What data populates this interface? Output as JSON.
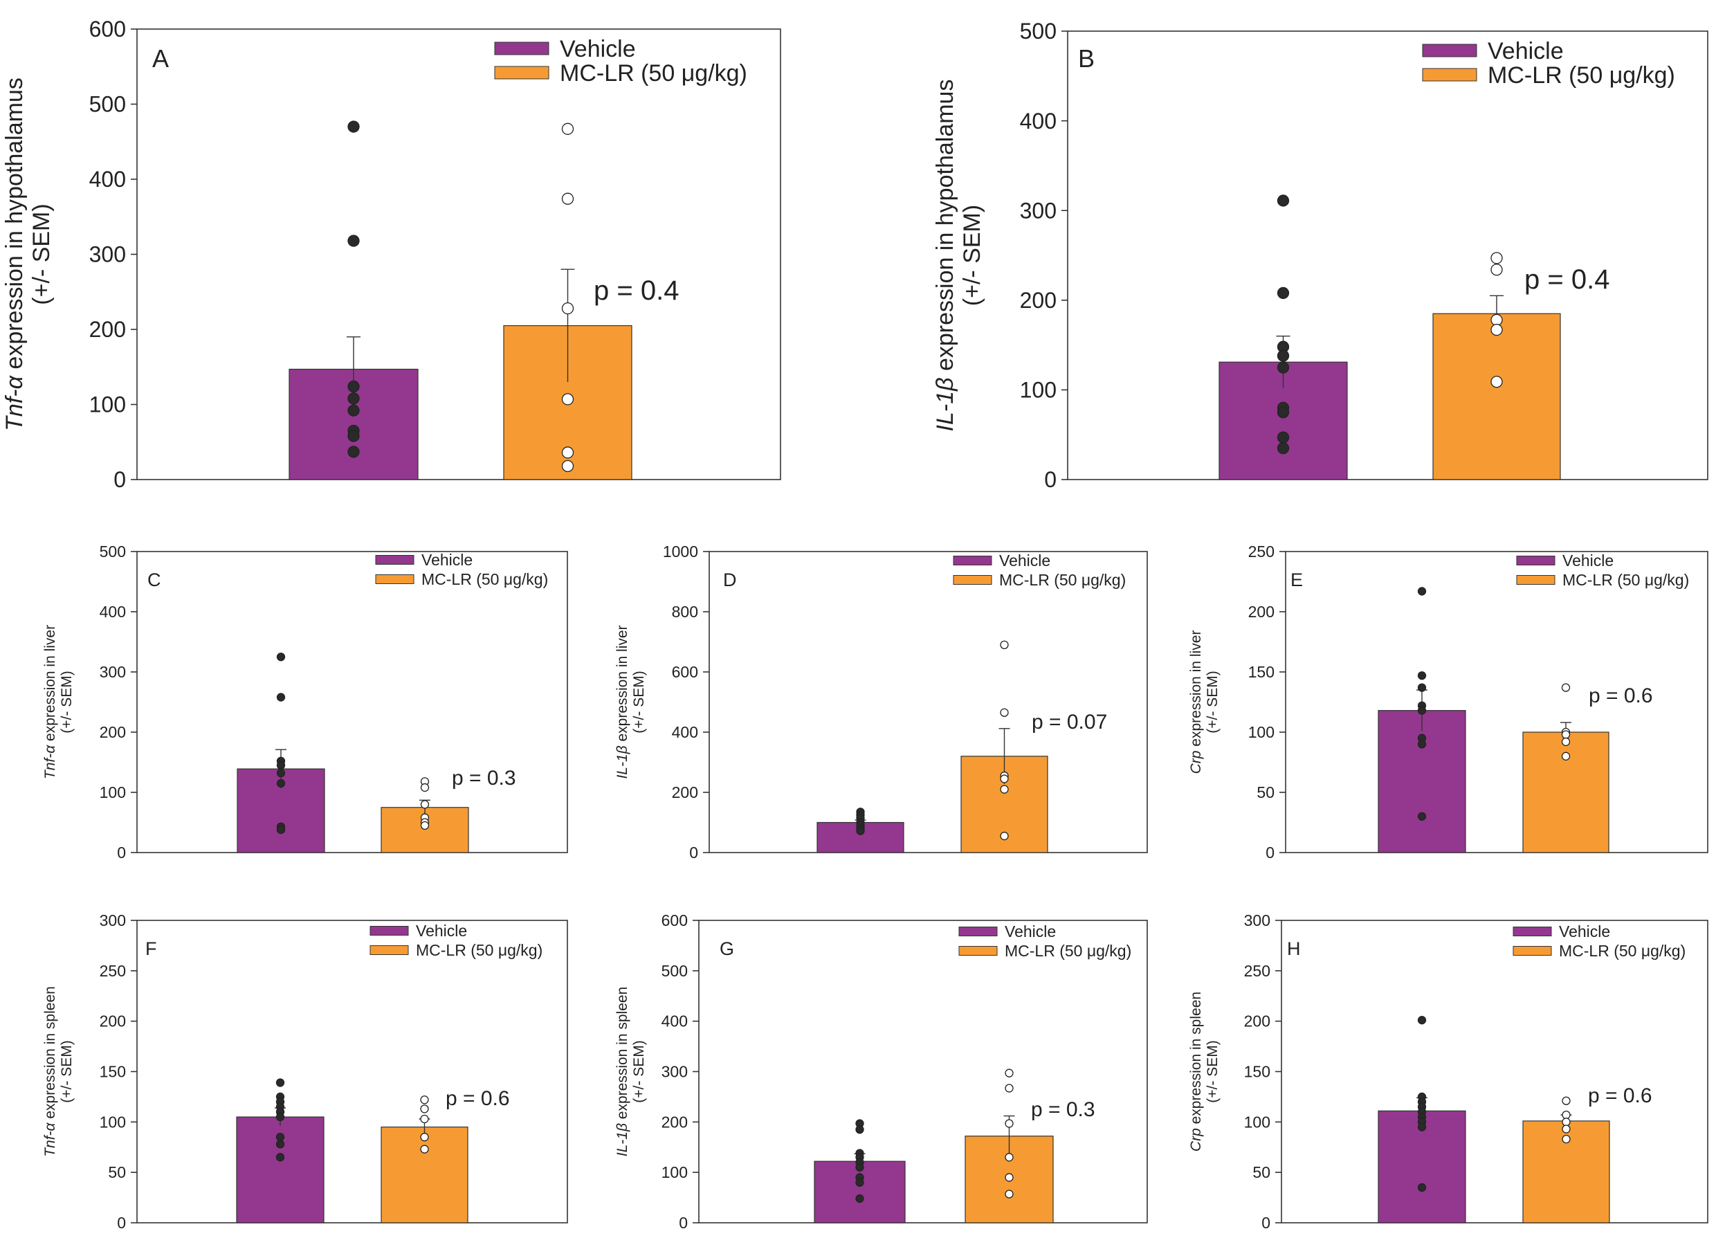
{
  "colors": {
    "vehicle": "#93388e",
    "mclr": "#f69b33",
    "dot_vehicle": "#2a2a2a",
    "dot_mclr": "#ffffff",
    "axis": "#333333"
  },
  "chart_data": [
    {
      "id": "A",
      "type": "bar",
      "panel_label": "A",
      "ylabel": [
        "Tnf-α expression in hypothalamus",
        "(+/- SEM)"
      ],
      "ylabel_italic": "Tnf-α",
      "yticks": [
        0,
        100,
        200,
        300,
        400,
        500,
        600
      ],
      "ylim": [
        0,
        600
      ],
      "series": [
        {
          "name": "Vehicle",
          "value": 147,
          "sem": 43,
          "points": [
            470,
            318,
            124,
            108,
            92,
            65,
            58,
            37
          ]
        },
        {
          "name": "MC-LR (50 μg/kg)",
          "value": 205,
          "sem": 75,
          "points": [
            467,
            374,
            228,
            107,
            36,
            18
          ]
        }
      ],
      "annotation": "p = 0.4",
      "legend": [
        "Vehicle",
        "MC-LR (50 μg/kg)"
      ]
    },
    {
      "id": "B",
      "type": "bar",
      "panel_label": "B",
      "ylabel": [
        "IL-1β expression in hypothalamus",
        "(+/- SEM)"
      ],
      "ylabel_italic": "IL-1β",
      "yticks": [
        0,
        100,
        200,
        300,
        400,
        500
      ],
      "ylim": [
        0,
        500
      ],
      "series": [
        {
          "name": "Vehicle",
          "value": 131,
          "sem": 29,
          "points": [
            311,
            208,
            148,
            138,
            125,
            80,
            75,
            47,
            35
          ]
        },
        {
          "name": "MC-LR (50 μg/kg)",
          "value": 185,
          "sem": 20,
          "points": [
            247,
            234,
            178,
            167,
            109
          ]
        }
      ],
      "annotation": "p = 0.4",
      "legend": [
        "Vehicle",
        "MC-LR (50 μg/kg)"
      ]
    },
    {
      "id": "C",
      "type": "bar",
      "panel_label": "C",
      "ylabel": [
        "Tnf-α expression in liver",
        "(+/- SEM)"
      ],
      "ylabel_italic": "Tnf-α",
      "yticks": [
        0,
        100,
        200,
        300,
        400,
        500
      ],
      "ylim": [
        0,
        500
      ],
      "series": [
        {
          "name": "Vehicle",
          "value": 139,
          "sem": 32,
          "points": [
            325,
            258,
            152,
            145,
            132,
            115,
            43,
            38
          ]
        },
        {
          "name": "MC-LR (50 μg/kg)",
          "value": 75,
          "sem": 12,
          "points": [
            118,
            108,
            80,
            58,
            50,
            45
          ]
        }
      ],
      "annotation": "p = 0.3",
      "legend": [
        "Vehicle",
        "MC-LR (50 μg/kg)"
      ]
    },
    {
      "id": "D",
      "type": "bar",
      "panel_label": "D",
      "ylabel": [
        "IL-1β expression in liver",
        "(+/- SEM)"
      ],
      "ylabel_italic": "IL-1β",
      "yticks": [
        0,
        200,
        400,
        600,
        800,
        1000
      ],
      "ylim": [
        0,
        1000
      ],
      "series": [
        {
          "name": "Vehicle",
          "value": 100,
          "sem": 8,
          "points": [
            135,
            125,
            115,
            100,
            90,
            80,
            72
          ]
        },
        {
          "name": "MC-LR (50 μg/kg)",
          "value": 320,
          "sem": 92,
          "points": [
            690,
            465,
            255,
            245,
            210,
            55
          ]
        }
      ],
      "annotation": "p = 0.07",
      "legend": [
        "Vehicle",
        "MC-LR (50 μg/kg)"
      ]
    },
    {
      "id": "E",
      "type": "bar",
      "panel_label": "E",
      "ylabel": [
        "Crp expression in liver",
        "(+/- SEM)"
      ],
      "ylabel_italic": "Crp",
      "yticks": [
        0,
        50,
        100,
        150,
        200,
        250
      ],
      "ylim": [
        0,
        250
      ],
      "series": [
        {
          "name": "Vehicle",
          "value": 118,
          "sem": 17,
          "points": [
            217,
            147,
            137,
            122,
            118,
            95,
            90,
            30
          ]
        },
        {
          "name": "MC-LR (50 μg/kg)",
          "value": 100,
          "sem": 8,
          "points": [
            137,
            100,
            98,
            92,
            80
          ]
        }
      ],
      "annotation": "p = 0.6",
      "legend": [
        "Vehicle",
        "MC-LR (50 μg/kg)"
      ]
    },
    {
      "id": "F",
      "type": "bar",
      "panel_label": "F",
      "ylabel": [
        "Tnf-α expression in spleen",
        "(+/- SEM)"
      ],
      "ylabel_italic": "Tnf-α",
      "yticks": [
        0,
        50,
        100,
        150,
        200,
        250,
        300
      ],
      "ylim": [
        0,
        300
      ],
      "series": [
        {
          "name": "Vehicle",
          "value": 105,
          "sem": 9,
          "points": [
            139,
            125,
            120,
            115,
            110,
            105,
            85,
            78,
            65
          ]
        },
        {
          "name": "MC-LR (50 μg/kg)",
          "value": 95,
          "sem": 8,
          "points": [
            122,
            113,
            103,
            85,
            73
          ]
        }
      ],
      "annotation": "p = 0.6",
      "legend": [
        "Vehicle",
        "MC-LR (50 μg/kg)"
      ]
    },
    {
      "id": "G",
      "type": "bar",
      "panel_label": "G",
      "ylabel": [
        "IL-1β expression in spleen",
        "(+/- SEM)"
      ],
      "ylabel_italic": "IL-1β",
      "yticks": [
        0,
        100,
        200,
        300,
        400,
        500,
        600
      ],
      "ylim": [
        0,
        600
      ],
      "series": [
        {
          "name": "Vehicle",
          "value": 122,
          "sem": 15,
          "points": [
            197,
            185,
            138,
            130,
            120,
            110,
            90,
            80,
            48
          ]
        },
        {
          "name": "MC-LR (50 μg/kg)",
          "value": 172,
          "sem": 40,
          "points": [
            297,
            267,
            197,
            130,
            90,
            57
          ]
        }
      ],
      "annotation": "p = 0.3",
      "legend": [
        "Vehicle",
        "MC-LR (50 μg/kg)"
      ]
    },
    {
      "id": "H",
      "type": "bar",
      "panel_label": "H",
      "ylabel": [
        "Crp expression in spleen",
        "(+/- SEM)"
      ],
      "ylabel_italic": "Crp",
      "yticks": [
        0,
        50,
        100,
        150,
        200,
        250,
        300
      ],
      "ylim": [
        0,
        300
      ],
      "series": [
        {
          "name": "Vehicle",
          "value": 111,
          "sem": 13,
          "points": [
            201,
            125,
            120,
            115,
            110,
            105,
            100,
            95,
            35
          ]
        },
        {
          "name": "MC-LR (50 μg/kg)",
          "value": 101,
          "sem": 6,
          "points": [
            121,
            107,
            100,
            93,
            83
          ]
        }
      ],
      "annotation": "p = 0.6",
      "legend": [
        "Vehicle",
        "MC-LR (50 μg/kg)"
      ]
    }
  ]
}
